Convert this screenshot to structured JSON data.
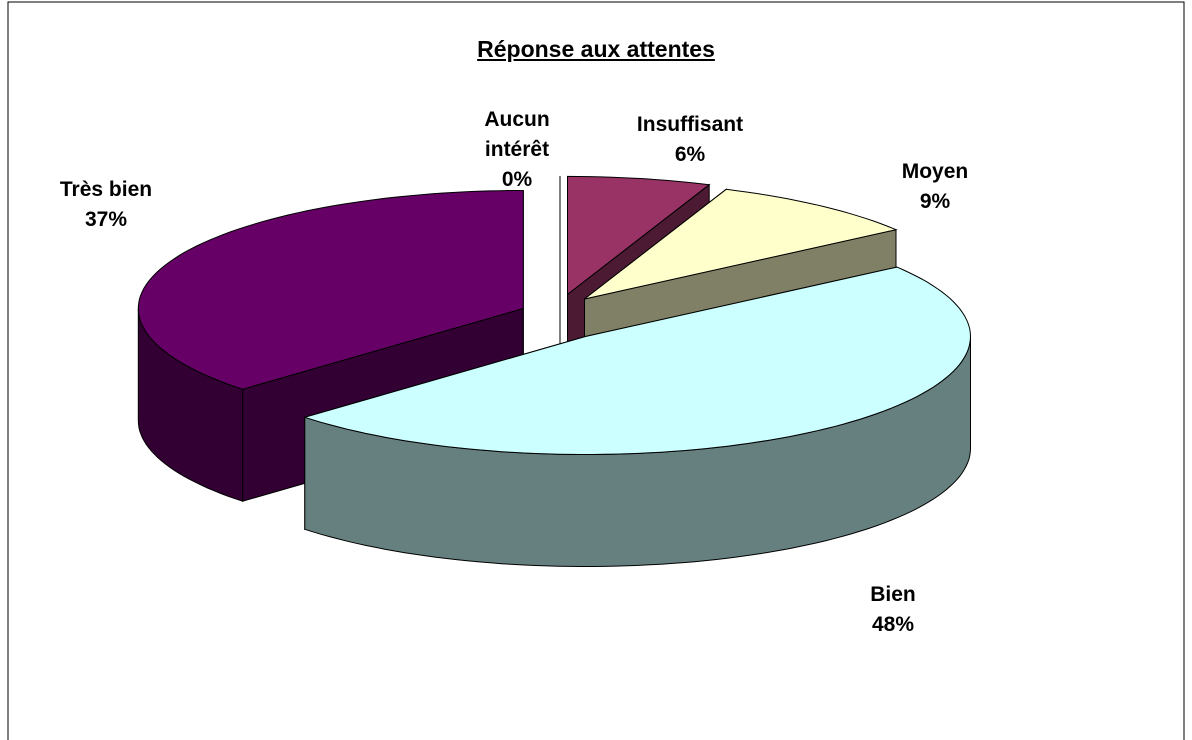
{
  "chart_data": {
    "type": "pie3d",
    "title": "Réponse aux attentes",
    "categories": [
      "Aucun intérêt",
      "Insuffisant",
      "Moyen",
      "Bien",
      "Très bien"
    ],
    "values": [
      0,
      6,
      9,
      48,
      37
    ],
    "value_labels": [
      "0%",
      "6%",
      "9%",
      "48%",
      "37%"
    ],
    "colors": [
      "#ffffff",
      "#993366",
      "#ffffcc",
      "#ccffff",
      "#660066"
    ]
  }
}
